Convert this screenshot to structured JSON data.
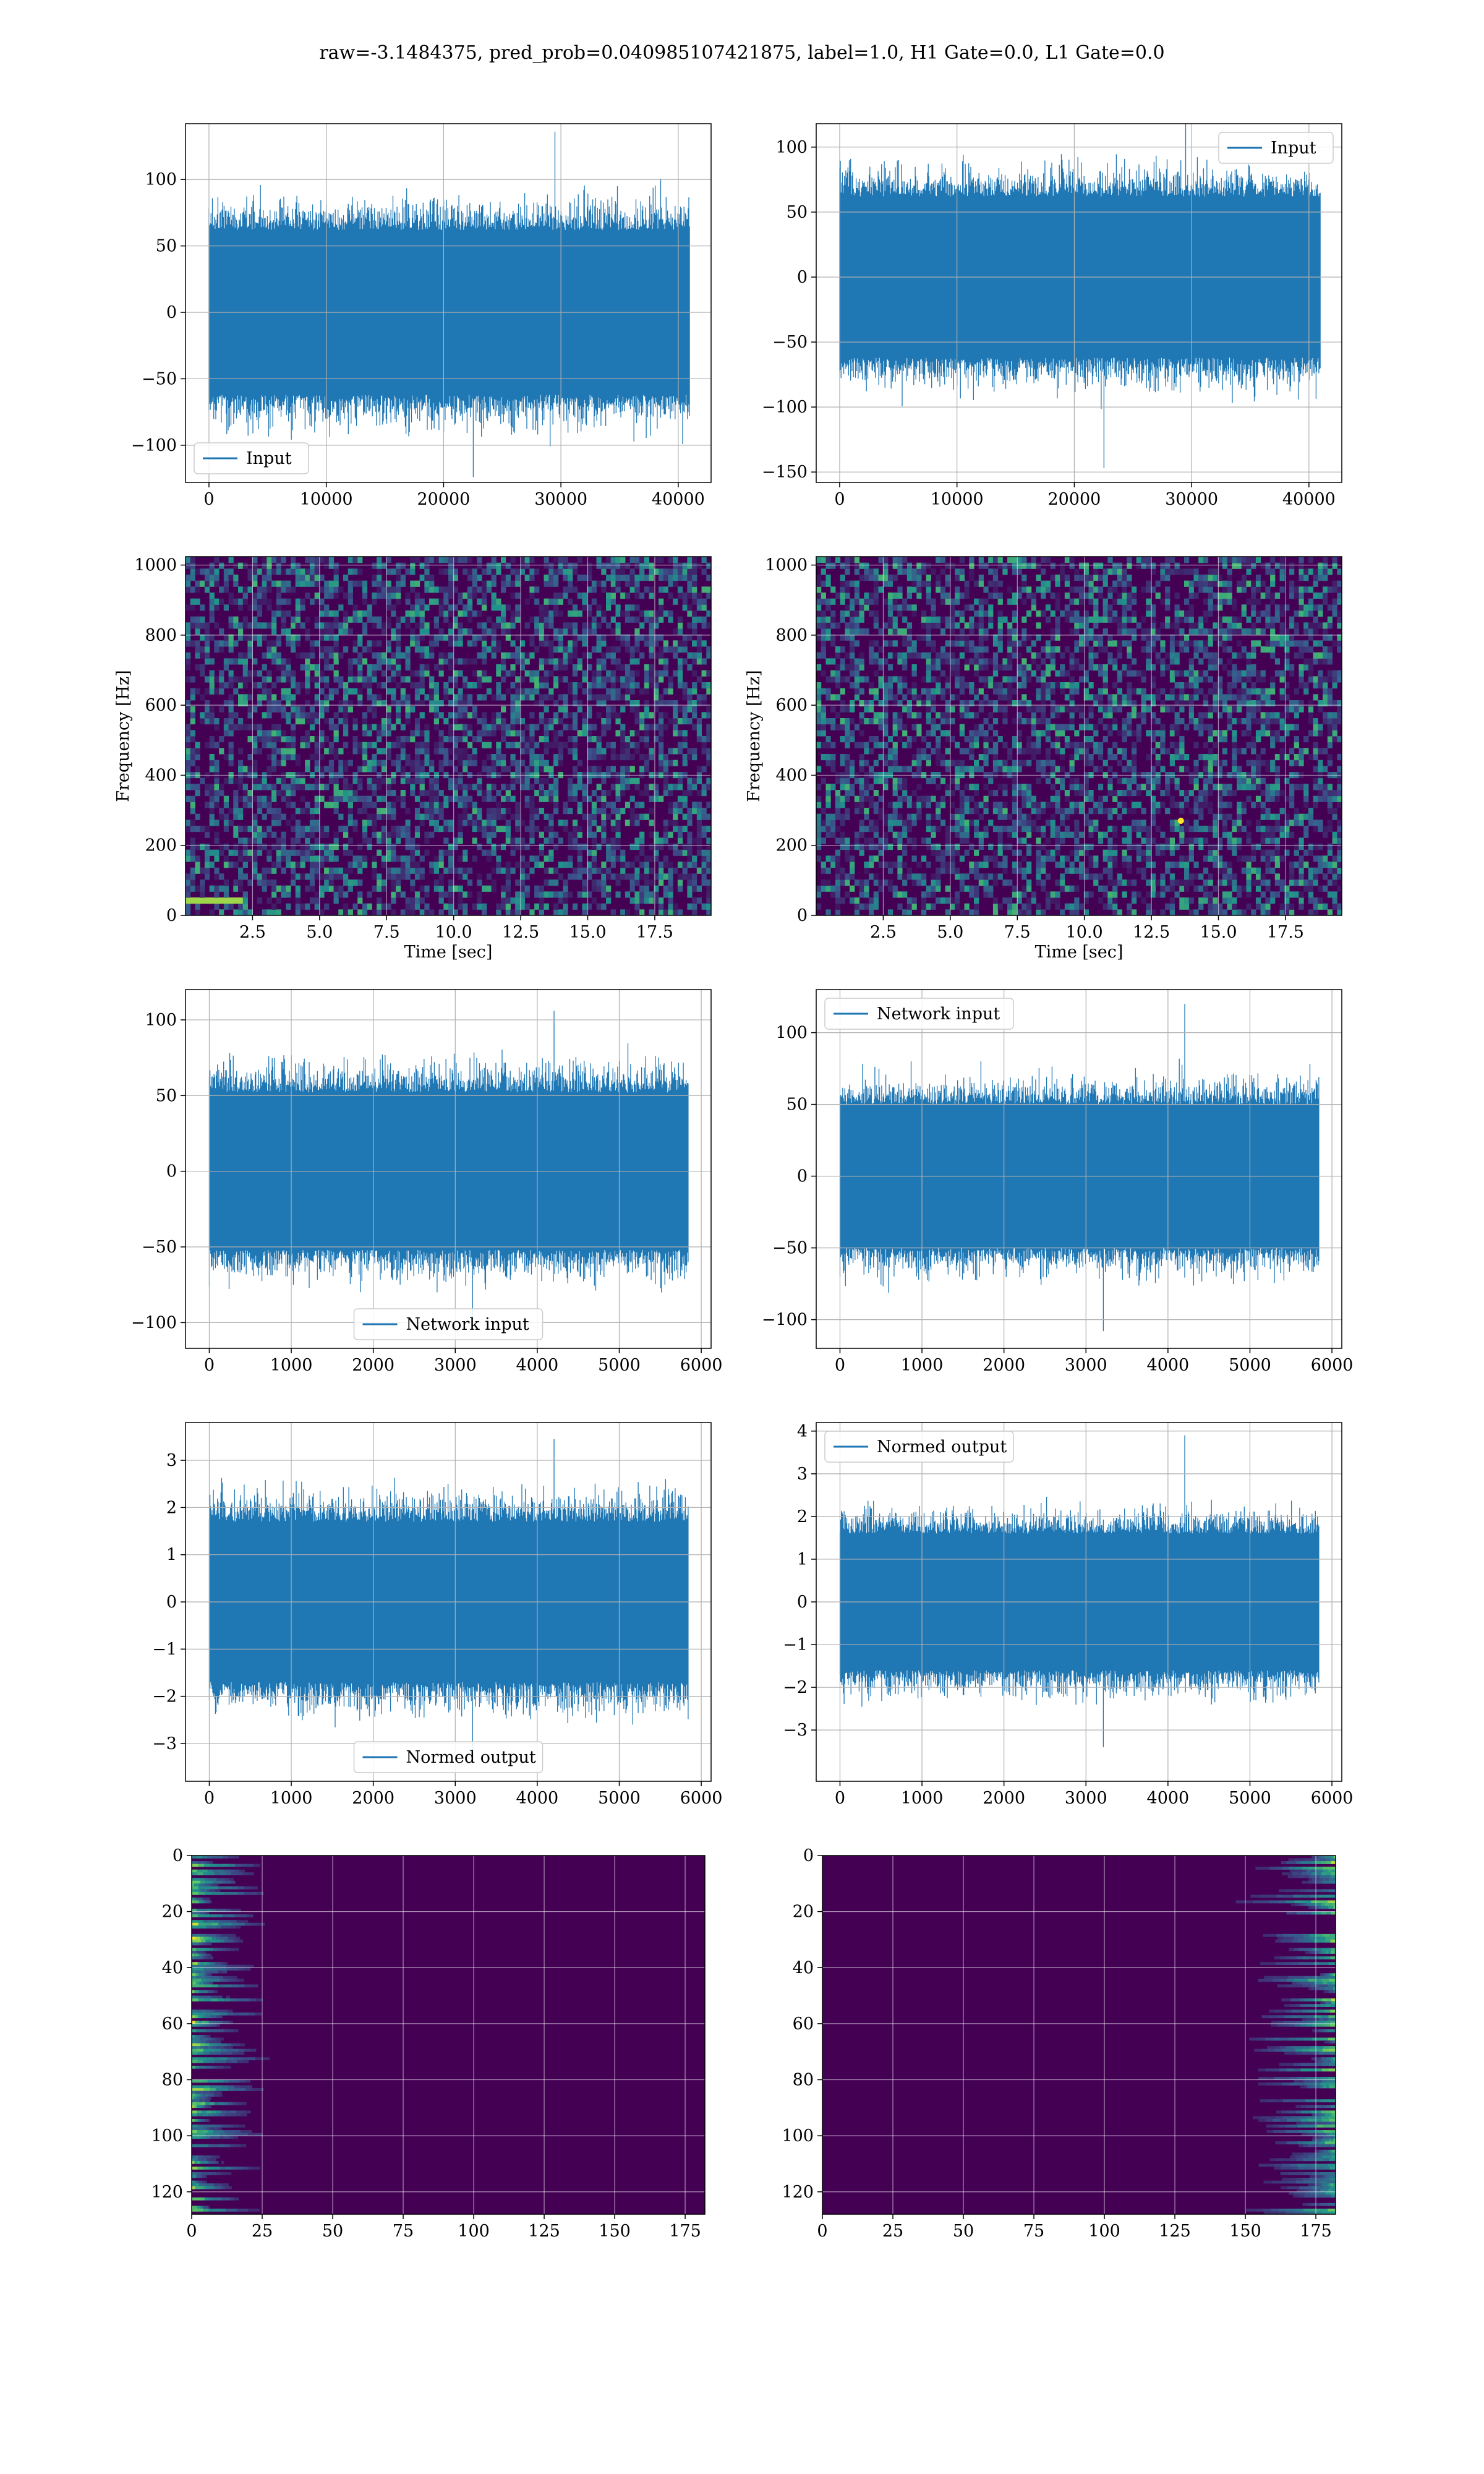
{
  "title": "raw=-3.1484375, pred_prob=0.040985107421875, label=1.0, H1 Gate=0.0, L1 Gate=0.0",
  "colors": {
    "line": "#1f77b4",
    "grid": "#b0b0b0",
    "viridis_low": "#440154",
    "viridis_high": "#fde725"
  },
  "chart_data": [
    {
      "id": "input-h1",
      "type": "line",
      "render": "noise-band",
      "xlim": [
        -2000,
        42800
      ],
      "ylim": [
        -128,
        142
      ],
      "x_ticks": [
        0,
        10000,
        20000,
        30000,
        40000
      ],
      "y_ticks": [
        -100,
        -50,
        0,
        50,
        100
      ],
      "x_range": [
        0,
        40960
      ],
      "band": [
        -62,
        62
      ],
      "peak": [
        -124,
        136
      ],
      "legend": {
        "label": "Input",
        "loc": "lower left"
      },
      "series": [
        {
          "name": "Input"
        }
      ],
      "xlabel": "",
      "ylabel": "",
      "grid": true
    },
    {
      "id": "input-l1",
      "type": "line",
      "render": "noise-band",
      "xlim": [
        -2000,
        42800
      ],
      "ylim": [
        -158,
        118
      ],
      "x_ticks": [
        0,
        10000,
        20000,
        30000,
        40000
      ],
      "y_ticks": [
        -150,
        -100,
        -50,
        0,
        50,
        100
      ],
      "x_range": [
        0,
        40960
      ],
      "band": [
        -62,
        62
      ],
      "peak": [
        -147,
        126
      ],
      "legend": {
        "label": "Input",
        "loc": "upper right"
      },
      "series": [
        {
          "name": "Input"
        }
      ],
      "xlabel": "",
      "ylabel": "",
      "grid": true
    },
    {
      "id": "spectrogram-h1",
      "type": "heatmap",
      "render": "spectrogram",
      "xlim": [
        0,
        19.6
      ],
      "ylim": [
        0,
        1024
      ],
      "x_ticks": [
        2.5,
        5.0,
        7.5,
        10.0,
        12.5,
        15.0,
        17.5
      ],
      "x_tick_labels": [
        "2.5",
        "5.0",
        "7.5",
        "10.0",
        "12.5",
        "15.0",
        "17.5"
      ],
      "y_ticks": [
        0,
        200,
        400,
        600,
        800,
        1000
      ],
      "xlabel": "Time [sec]",
      "ylabel": "Frequency [Hz]",
      "grid": true,
      "features": {
        "line_hz": 40,
        "line_until_sec": 2.0
      }
    },
    {
      "id": "spectrogram-l1",
      "type": "heatmap",
      "render": "spectrogram",
      "xlim": [
        0,
        19.6
      ],
      "ylim": [
        0,
        1024
      ],
      "x_ticks": [
        2.5,
        5.0,
        7.5,
        10.0,
        12.5,
        15.0,
        17.5
      ],
      "x_tick_labels": [
        "2.5",
        "5.0",
        "7.5",
        "10.0",
        "12.5",
        "15.0",
        "17.5"
      ],
      "y_ticks": [
        0,
        200,
        400,
        600,
        800,
        1000
      ],
      "xlabel": "Time [sec]",
      "ylabel": "Frequency [Hz]",
      "grid": true,
      "features": {
        "bright_spot_sec": 13.6,
        "bright_spot_hz": 270
      }
    },
    {
      "id": "network-input-h1",
      "type": "line",
      "render": "noise-band",
      "xlim": [
        -290,
        6120
      ],
      "ylim": [
        -117,
        120
      ],
      "x_ticks": [
        0,
        1000,
        2000,
        3000,
        4000,
        5000,
        6000
      ],
      "y_ticks": [
        -100,
        -50,
        0,
        50,
        100
      ],
      "x_range": [
        0,
        5840
      ],
      "band": [
        -52,
        52
      ],
      "peak": [
        -104,
        106
      ],
      "legend": {
        "label": "Network input",
        "loc": "lower center"
      },
      "series": [
        {
          "name": "Network input"
        }
      ],
      "xlabel": "",
      "ylabel": "",
      "grid": true
    },
    {
      "id": "network-input-l1",
      "type": "line",
      "render": "noise-band",
      "xlim": [
        -290,
        6120
      ],
      "ylim": [
        -120,
        130
      ],
      "x_ticks": [
        0,
        1000,
        2000,
        3000,
        4000,
        5000,
        6000
      ],
      "y_ticks": [
        -100,
        -50,
        0,
        50,
        100
      ],
      "x_range": [
        0,
        5840
      ],
      "band": [
        -50,
        50
      ],
      "peak": [
        -108,
        120
      ],
      "legend": {
        "label": "Network input",
        "loc": "upper left"
      },
      "series": [
        {
          "name": "Network input"
        }
      ],
      "xlabel": "",
      "ylabel": "",
      "grid": true
    },
    {
      "id": "normed-output-h1",
      "type": "line",
      "render": "noise-band",
      "xlim": [
        -290,
        6120
      ],
      "ylim": [
        -3.8,
        3.8
      ],
      "x_ticks": [
        0,
        1000,
        2000,
        3000,
        4000,
        5000,
        6000
      ],
      "y_ticks": [
        -3,
        -2,
        -1,
        0,
        1,
        2,
        3
      ],
      "x_range": [
        0,
        5840
      ],
      "band": [
        -1.7,
        1.7
      ],
      "peak": [
        -3.4,
        3.45
      ],
      "legend": {
        "label": "Normed output",
        "loc": "lower center"
      },
      "series": [
        {
          "name": "Normed output"
        }
      ],
      "xlabel": "",
      "ylabel": "",
      "grid": true
    },
    {
      "id": "normed-output-l1",
      "type": "line",
      "render": "noise-band",
      "xlim": [
        -290,
        6120
      ],
      "ylim": [
        -4.2,
        4.2
      ],
      "x_ticks": [
        0,
        1000,
        2000,
        3000,
        4000,
        5000,
        6000
      ],
      "y_ticks": [
        -3,
        -2,
        -1,
        0,
        1,
        2,
        3,
        4
      ],
      "x_range": [
        0,
        5840
      ],
      "band": [
        -1.6,
        1.6
      ],
      "peak": [
        -3.4,
        3.9
      ],
      "legend": {
        "label": "Normed output",
        "loc": "upper left"
      },
      "series": [
        {
          "name": "Normed output"
        }
      ],
      "xlabel": "",
      "ylabel": "",
      "grid": true
    },
    {
      "id": "feature-map-h1",
      "type": "heatmap",
      "render": "feature-map",
      "xlim": [
        0,
        182
      ],
      "ylim": [
        128,
        0
      ],
      "x_ticks": [
        0,
        25,
        50,
        75,
        100,
        125,
        150,
        175
      ],
      "y_ticks": [
        0,
        20,
        40,
        60,
        80,
        100,
        120
      ],
      "xlabel": "",
      "ylabel": "",
      "grid": true,
      "features": {
        "bright_side": "left"
      }
    },
    {
      "id": "feature-map-l1",
      "type": "heatmap",
      "render": "feature-map",
      "xlim": [
        0,
        182
      ],
      "ylim": [
        128,
        0
      ],
      "x_ticks": [
        0,
        25,
        50,
        75,
        100,
        125,
        150,
        175
      ],
      "y_ticks": [
        0,
        20,
        40,
        60,
        80,
        100,
        120
      ],
      "xlabel": "",
      "ylabel": "",
      "grid": true,
      "features": {
        "bright_side": "right"
      }
    }
  ]
}
